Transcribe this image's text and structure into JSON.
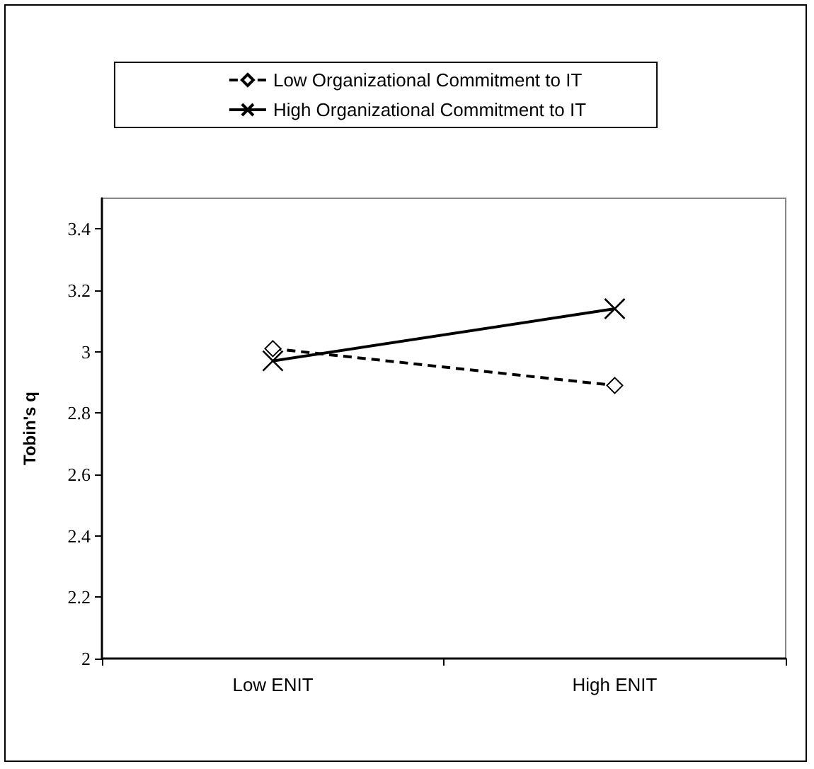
{
  "chart_data": {
    "type": "line",
    "ylabel": "Tobin's q",
    "categories": [
      "Low ENIT",
      "High ENIT"
    ],
    "series": [
      {
        "name": "Low Organizational Commitment to IT",
        "color": "#000000",
        "values": [
          3.01,
          2.89
        ],
        "marker": "diamond",
        "line_style": "dashed"
      },
      {
        "name": "High Organizational Commitment to IT",
        "color": "#000000",
        "values": [
          2.97,
          3.14
        ],
        "marker": "cross",
        "line_style": "solid"
      }
    ],
    "ylim": [
      2,
      3.5
    ],
    "yticks": [
      2,
      2.2,
      2.4,
      2.6,
      2.8,
      3,
      3.2,
      3.4
    ],
    "grid": false,
    "legend": "top"
  }
}
